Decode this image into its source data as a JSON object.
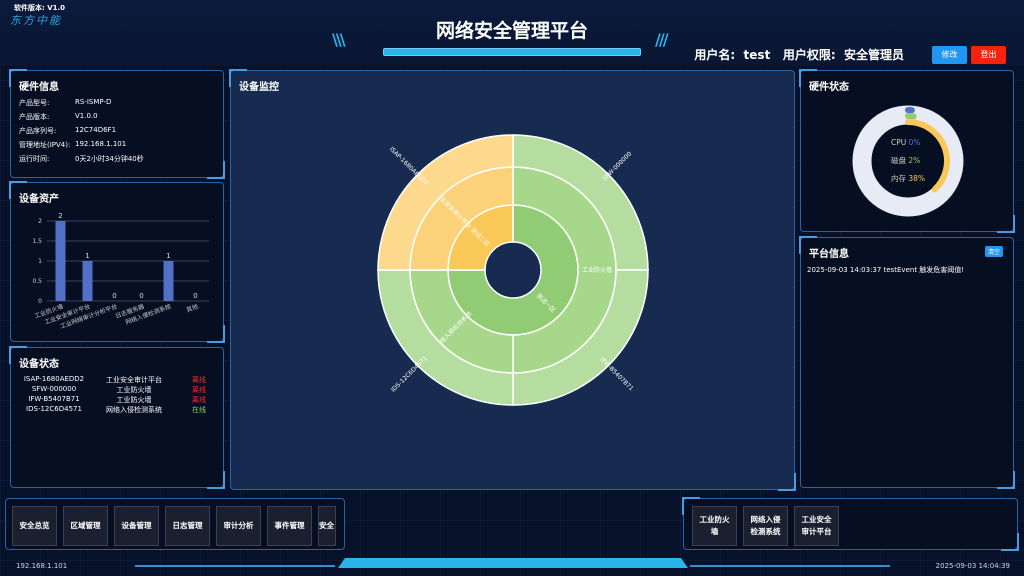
{
  "header": {
    "version": "软件版本: V1.0",
    "logo": "东方中能",
    "title": "网络安全管理平台",
    "user": "用户名:  test   用户权限:  安全管理员",
    "edit_btn": "修改",
    "logout_btn": "登出"
  },
  "hardware_info": {
    "title": "硬件信息",
    "rows": [
      {
        "k": "产品型号:",
        "v": "RS-ISMP-D"
      },
      {
        "k": "产品版本:",
        "v": "V1.0.0"
      },
      {
        "k": "产品序列号:",
        "v": "12C74D6F1"
      },
      {
        "k": "管理地址(IPV4):",
        "v": "192.168.1.101"
      },
      {
        "k": "运行时间:",
        "v": "0天2小时34分钟40秒"
      }
    ]
  },
  "assets": {
    "title": "设备资产",
    "chart_data": {
      "type": "bar",
      "categories": [
        "工业防火墙",
        "工业安全审计平台",
        "工业网络审计分析平台",
        "日志服务器",
        "网络入侵检测系统",
        "其他"
      ],
      "values": [
        2,
        1,
        0,
        0,
        1,
        0
      ],
      "ylim": [
        0,
        2
      ],
      "yticks": [
        "0",
        "0.5",
        "1",
        "1.5",
        "2"
      ],
      "color": "#5470c6"
    }
  },
  "device_status": {
    "title": "设备状态",
    "rows": [
      {
        "id": "ISAP-1680AEDD2",
        "type": "工业安全审计平台",
        "status": "离线",
        "color": "#ff2a2a"
      },
      {
        "id": "SFW-000000",
        "type": "工业防火墙",
        "status": "离线",
        "color": "#ff2a2a"
      },
      {
        "id": "IFW-B5407B71",
        "type": "工业防火墙",
        "status": "离线",
        "color": "#ff2a2a"
      },
      {
        "id": "IDS-12C6D4571",
        "type": "网络入侵检测系统",
        "status": "在线",
        "color": "#7ed957"
      }
    ]
  },
  "monitor": {
    "title": "设备监控",
    "chart_data": {
      "type": "sunburst",
      "rings": [
        [
          {
            "name": "测试一区",
            "from": 0,
            "to": 270,
            "color": "#91cc75"
          },
          {
            "name": "测试二区",
            "from": 270,
            "to": 360,
            "color": "#fac858"
          }
        ],
        [
          {
            "name": "工业防火墙",
            "from": 0,
            "to": 180,
            "color": "#a6d78b"
          },
          {
            "name": "网络入侵检测系统",
            "from": 180,
            "to": 270,
            "color": "#a6d78b"
          },
          {
            "name": "工业安全审计平台",
            "from": 270,
            "to": 360,
            "color": "#fbd27a"
          }
        ],
        [
          {
            "name": "SFW-000000",
            "from": 0,
            "to": 90,
            "color": "#b5dda0"
          },
          {
            "name": "IFW-B5407B71",
            "from": 90,
            "to": 180,
            "color": "#b5dda0"
          },
          {
            "name": "IDS-12C6D4571",
            "from": 180,
            "to": 270,
            "color": "#b5dda0"
          },
          {
            "name": "ISAP-1680AEDD2",
            "from": 270,
            "to": 360,
            "color": "#fcd98c"
          }
        ]
      ]
    }
  },
  "hardware_status": {
    "title": "硬件状态",
    "cpu_label": "CPU",
    "cpu": "0%",
    "disk_label": "磁盘",
    "disk": "2%",
    "mem_label": "内存",
    "mem": "38%",
    "chart_data": {
      "type": "radial-bar",
      "values": {
        "cpu": 0,
        "disk": 2,
        "mem": 38
      },
      "colors": {
        "cpu": "#5470c6",
        "disk": "#91cc75",
        "mem": "#fac858"
      }
    }
  },
  "platform_info": {
    "title": "平台信息",
    "clear_btn": "清空",
    "messages": [
      "2025-09-03 14:03:37 testEvent 触发危害阈值!"
    ]
  },
  "nav": {
    "left": [
      "安全总览",
      "区域管理",
      "设备管理",
      "日志管理",
      "审计分析",
      "事件管理",
      "安全"
    ],
    "right": [
      "工业防火墙",
      "网络入侵检测系统",
      "工业安全审计平台"
    ]
  },
  "footer": {
    "ip": "192.168.1.101",
    "time": "2025-09-03 14:04:39"
  }
}
